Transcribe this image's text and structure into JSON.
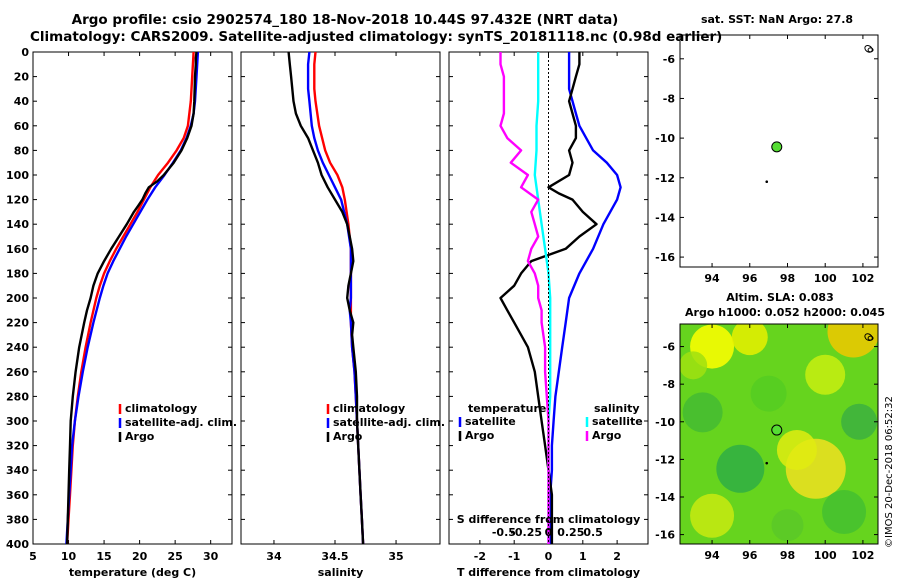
{
  "header": {
    "line1": "Argo profile: csio 2902574_180 18-Nov-2018 10.44S 97.432E (NRT data)",
    "line2": "Climatology: CARS2009. Satellite-adjusted climatology: synTS_20181118.nc (0.98d earlier)"
  },
  "colors": {
    "climatology": "#ff0000",
    "satellite": "#0000ff",
    "argo": "#000000",
    "sat_salinity": "#00ffff",
    "clim_salinity": "#ff00ff",
    "float_marker": "#55dd33"
  },
  "chart_data": [
    {
      "type": "line",
      "id": "temperature",
      "xlabel": "temperature (deg C)",
      "ylabel": "",
      "xlim": [
        5,
        33
      ],
      "ylim": [
        400,
        0
      ],
      "xticks": [
        5,
        10,
        15,
        20,
        25,
        30
      ],
      "yticks": [
        0,
        20,
        40,
        60,
        80,
        100,
        120,
        140,
        160,
        180,
        200,
        220,
        240,
        260,
        280,
        300,
        320,
        340,
        360,
        380,
        400
      ],
      "legend": [
        "climatology",
        "satellite-adj. clim.",
        "Argo"
      ],
      "series": [
        {
          "name": "climatology",
          "color": "#ff0000",
          "depth": [
            0,
            10,
            20,
            40,
            60,
            70,
            80,
            90,
            100,
            110,
            120,
            130,
            140,
            150,
            160,
            170,
            180,
            190,
            200,
            220,
            240,
            260,
            280,
            300,
            320,
            340,
            360,
            380,
            400
          ],
          "values": [
            27.6,
            27.5,
            27.4,
            27.2,
            26.8,
            26.2,
            25.2,
            24.0,
            22.6,
            21.5,
            20.6,
            19.7,
            18.7,
            17.7,
            16.7,
            15.8,
            15.0,
            14.4,
            13.9,
            13.1,
            12.4,
            11.8,
            11.3,
            10.9,
            10.6,
            10.4,
            10.2,
            10.0,
            9.8
          ]
        },
        {
          "name": "satellite-adj. clim.",
          "color": "#0000ff",
          "depth": [
            0,
            10,
            20,
            40,
            50,
            60,
            70,
            80,
            90,
            100,
            110,
            120,
            130,
            140,
            150,
            160,
            170,
            180,
            190,
            200,
            220,
            240,
            260,
            280,
            300,
            320,
            340,
            360,
            380,
            400
          ],
          "values": [
            28.2,
            28.1,
            28.0,
            27.8,
            27.6,
            27.2,
            26.6,
            25.8,
            24.7,
            23.5,
            22.2,
            21.1,
            20.1,
            19.1,
            18.1,
            17.2,
            16.3,
            15.5,
            14.9,
            14.4,
            13.5,
            12.7,
            12.0,
            11.4,
            10.9,
            10.5,
            10.3,
            10.1,
            9.9,
            9.7
          ]
        },
        {
          "name": "Argo",
          "color": "#000000",
          "depth": [
            0,
            5,
            10,
            20,
            40,
            50,
            60,
            70,
            80,
            90,
            100,
            105,
            110,
            115,
            120,
            125,
            130,
            140,
            150,
            160,
            170,
            180,
            190,
            200,
            210,
            220,
            240,
            260,
            280,
            300,
            320,
            340,
            360,
            380,
            400
          ],
          "values": [
            28.0,
            27.9,
            27.9,
            27.8,
            27.7,
            27.6,
            27.3,
            26.7,
            25.9,
            24.8,
            23.4,
            22.5,
            21.3,
            20.8,
            20.4,
            19.8,
            19.2,
            18.2,
            17.1,
            16.0,
            15.0,
            14.1,
            13.5,
            13.1,
            12.6,
            12.2,
            11.5,
            11.0,
            10.6,
            10.3,
            10.2,
            10.1,
            10.0,
            9.9,
            9.8
          ]
        }
      ]
    },
    {
      "type": "line",
      "id": "salinity",
      "xlabel": "salinity",
      "xlim": [
        33.73,
        35.36
      ],
      "ylim": [
        400,
        0
      ],
      "xticks": [
        34,
        34.5,
        35
      ],
      "legend": [
        "climatology",
        "satellite-adj. clim.",
        "Argo"
      ],
      "series": [
        {
          "name": "climatology",
          "color": "#ff0000",
          "depth": [
            0,
            10,
            20,
            30,
            40,
            60,
            80,
            90,
            100,
            110,
            120,
            140,
            160,
            180,
            200,
            210,
            220,
            240,
            260,
            280,
            300,
            320,
            340,
            360,
            380,
            400
          ],
          "values": [
            34.34,
            34.33,
            34.33,
            34.33,
            34.34,
            34.37,
            34.42,
            34.46,
            34.52,
            34.56,
            34.58,
            34.61,
            34.63,
            34.63,
            34.63,
            34.63,
            34.63,
            34.64,
            34.66,
            34.67,
            34.68,
            34.69,
            34.7,
            34.71,
            34.72,
            34.73
          ]
        },
        {
          "name": "satellite-adj. clim.",
          "color": "#0000ff",
          "depth": [
            0,
            10,
            20,
            30,
            40,
            50,
            60,
            70,
            80,
            90,
            100,
            110,
            120,
            140,
            160,
            180,
            200,
            210,
            220,
            240,
            260,
            280,
            300,
            320,
            340,
            360,
            380,
            400
          ],
          "values": [
            34.29,
            34.28,
            34.28,
            34.28,
            34.29,
            34.3,
            34.31,
            34.33,
            34.36,
            34.4,
            34.45,
            34.5,
            34.55,
            34.6,
            34.63,
            34.63,
            34.63,
            34.62,
            34.63,
            34.64,
            34.66,
            34.67,
            34.68,
            34.69,
            34.7,
            34.71,
            34.72,
            34.73
          ]
        },
        {
          "name": "Argo",
          "color": "#000000",
          "depth": [
            0,
            10,
            20,
            40,
            50,
            60,
            70,
            80,
            90,
            100,
            110,
            120,
            130,
            140,
            150,
            160,
            170,
            180,
            190,
            200,
            210,
            220,
            230,
            240,
            260,
            280,
            300,
            320,
            340,
            360,
            380,
            400
          ],
          "values": [
            34.12,
            34.13,
            34.14,
            34.16,
            34.18,
            34.22,
            34.28,
            34.32,
            34.36,
            34.39,
            34.44,
            34.5,
            34.56,
            34.6,
            34.62,
            34.64,
            34.65,
            34.63,
            34.61,
            34.6,
            34.62,
            34.65,
            34.64,
            34.65,
            34.67,
            34.68,
            34.68,
            34.69,
            34.7,
            34.71,
            34.72,
            34.73
          ]
        }
      ]
    },
    {
      "type": "line",
      "id": "differences",
      "xlabel": "T difference from climatology",
      "top_label": "S difference from climatology",
      "xlim": [
        -2.9,
        2.9
      ],
      "ylim": [
        400,
        0
      ],
      "xticks": [
        -2,
        -1,
        0,
        1,
        2
      ],
      "top_ticks": [
        "-0.5",
        "-0.25",
        "0",
        "0.25",
        "0.5"
      ],
      "legend_titles": [
        "temperature",
        "salinity"
      ],
      "legend": [
        "satellite",
        "Argo",
        "satellite",
        "Argo"
      ],
      "series": [
        {
          "name": "temperature satellite",
          "color": "#0000ff",
          "depth": [
            0,
            10,
            20,
            30,
            40,
            50,
            60,
            70,
            80,
            90,
            100,
            110,
            120,
            140,
            160,
            180,
            200,
            220,
            240,
            260,
            280,
            300,
            320,
            340,
            360,
            380,
            400
          ],
          "values": [
            0.6,
            0.6,
            0.6,
            0.6,
            0.7,
            0.8,
            0.9,
            1.1,
            1.3,
            1.7,
            2.0,
            2.1,
            2.0,
            1.6,
            1.3,
            0.9,
            0.6,
            0.5,
            0.4,
            0.3,
            0.2,
            0.15,
            0.1,
            0.1,
            0.05,
            0.05,
            0.05
          ]
        },
        {
          "name": "temperature Argo",
          "color": "#000000",
          "depth": [
            0,
            10,
            20,
            30,
            40,
            50,
            60,
            70,
            80,
            90,
            100,
            110,
            115,
            120,
            130,
            140,
            150,
            160,
            170,
            180,
            190,
            200,
            210,
            220,
            230,
            240,
            260,
            280,
            300,
            320,
            340,
            360,
            380,
            400
          ],
          "values": [
            0.9,
            0.9,
            0.8,
            0.7,
            0.6,
            0.7,
            0.8,
            0.8,
            0.6,
            0.7,
            0.6,
            0.0,
            0.3,
            0.7,
            1.0,
            1.4,
            0.9,
            0.5,
            -0.5,
            -0.8,
            -1.0,
            -1.4,
            -1.2,
            -1.0,
            -0.8,
            -0.6,
            -0.4,
            -0.3,
            -0.2,
            -0.1,
            0.0,
            0.1,
            0.1,
            0.1
          ]
        },
        {
          "name": "salinity satellite",
          "color": "#00ffff",
          "depth": [
            0,
            20,
            40,
            60,
            80,
            100,
            120,
            140,
            160,
            180,
            200,
            220,
            240,
            260,
            280,
            300,
            320,
            340,
            360,
            380,
            400
          ],
          "values": [
            -0.3,
            -0.3,
            -0.3,
            -0.35,
            -0.35,
            -0.4,
            -0.3,
            -0.2,
            -0.1,
            0.0,
            0.05,
            0.05,
            0.05,
            0.05,
            0.05,
            0.0,
            0.0,
            0.0,
            0.0,
            0.0,
            0.0
          ]
        },
        {
          "name": "salinity Argo",
          "color": "#ff00ff",
          "depth": [
            0,
            10,
            20,
            40,
            50,
            60,
            70,
            80,
            90,
            100,
            110,
            120,
            130,
            140,
            150,
            160,
            170,
            180,
            190,
            200,
            210,
            220,
            240,
            260,
            280,
            300,
            320,
            340,
            360,
            380,
            400
          ],
          "values": [
            -1.4,
            -1.4,
            -1.3,
            -1.3,
            -1.3,
            -1.4,
            -1.2,
            -0.8,
            -1.1,
            -0.6,
            -0.8,
            -0.3,
            -0.5,
            -0.4,
            -0.3,
            -0.5,
            -0.6,
            -0.4,
            -0.3,
            -0.3,
            -0.2,
            -0.2,
            -0.1,
            -0.1,
            -0.05,
            0.0,
            0.0,
            0.0,
            0.0,
            0.0,
            0.0
          ]
        }
      ]
    },
    {
      "type": "scatter",
      "id": "sst_map",
      "title": "sat. SST: NaN Argo: 27.8",
      "xlim": [
        92.3,
        102.8
      ],
      "ylim": [
        -16.5,
        -4.8
      ],
      "xticks": [
        94,
        96,
        98,
        100,
        102
      ],
      "yticks": [
        -6,
        -8,
        -10,
        -12,
        -14,
        -16
      ],
      "points": [
        {
          "label": "Argo float position",
          "x": 97.432,
          "y": -10.44,
          "color": "#55dd33"
        },
        {
          "label": "track start",
          "x": 96.9,
          "y": -12.2,
          "color": "#000000"
        }
      ]
    },
    {
      "type": "heatmap",
      "id": "sla_map",
      "title": "Altim. SLA: 0.083",
      "subtitle": "Argo h1000: 0.052 h2000: 0.045",
      "xlim": [
        92.3,
        102.8
      ],
      "ylim": [
        -16.5,
        -4.8
      ],
      "xticks": [
        94,
        96,
        98,
        100,
        102
      ],
      "yticks": [
        -6,
        -8,
        -10,
        -12,
        -14,
        -16
      ],
      "points": [
        {
          "label": "Argo float position",
          "x": 97.432,
          "y": -10.44,
          "color": "#55dd33"
        },
        {
          "label": "track start",
          "x": 96.9,
          "y": -12.2,
          "color": "#000000"
        }
      ]
    }
  ],
  "watermark": "©IMOS 20-Dec-2018 06:52:32"
}
